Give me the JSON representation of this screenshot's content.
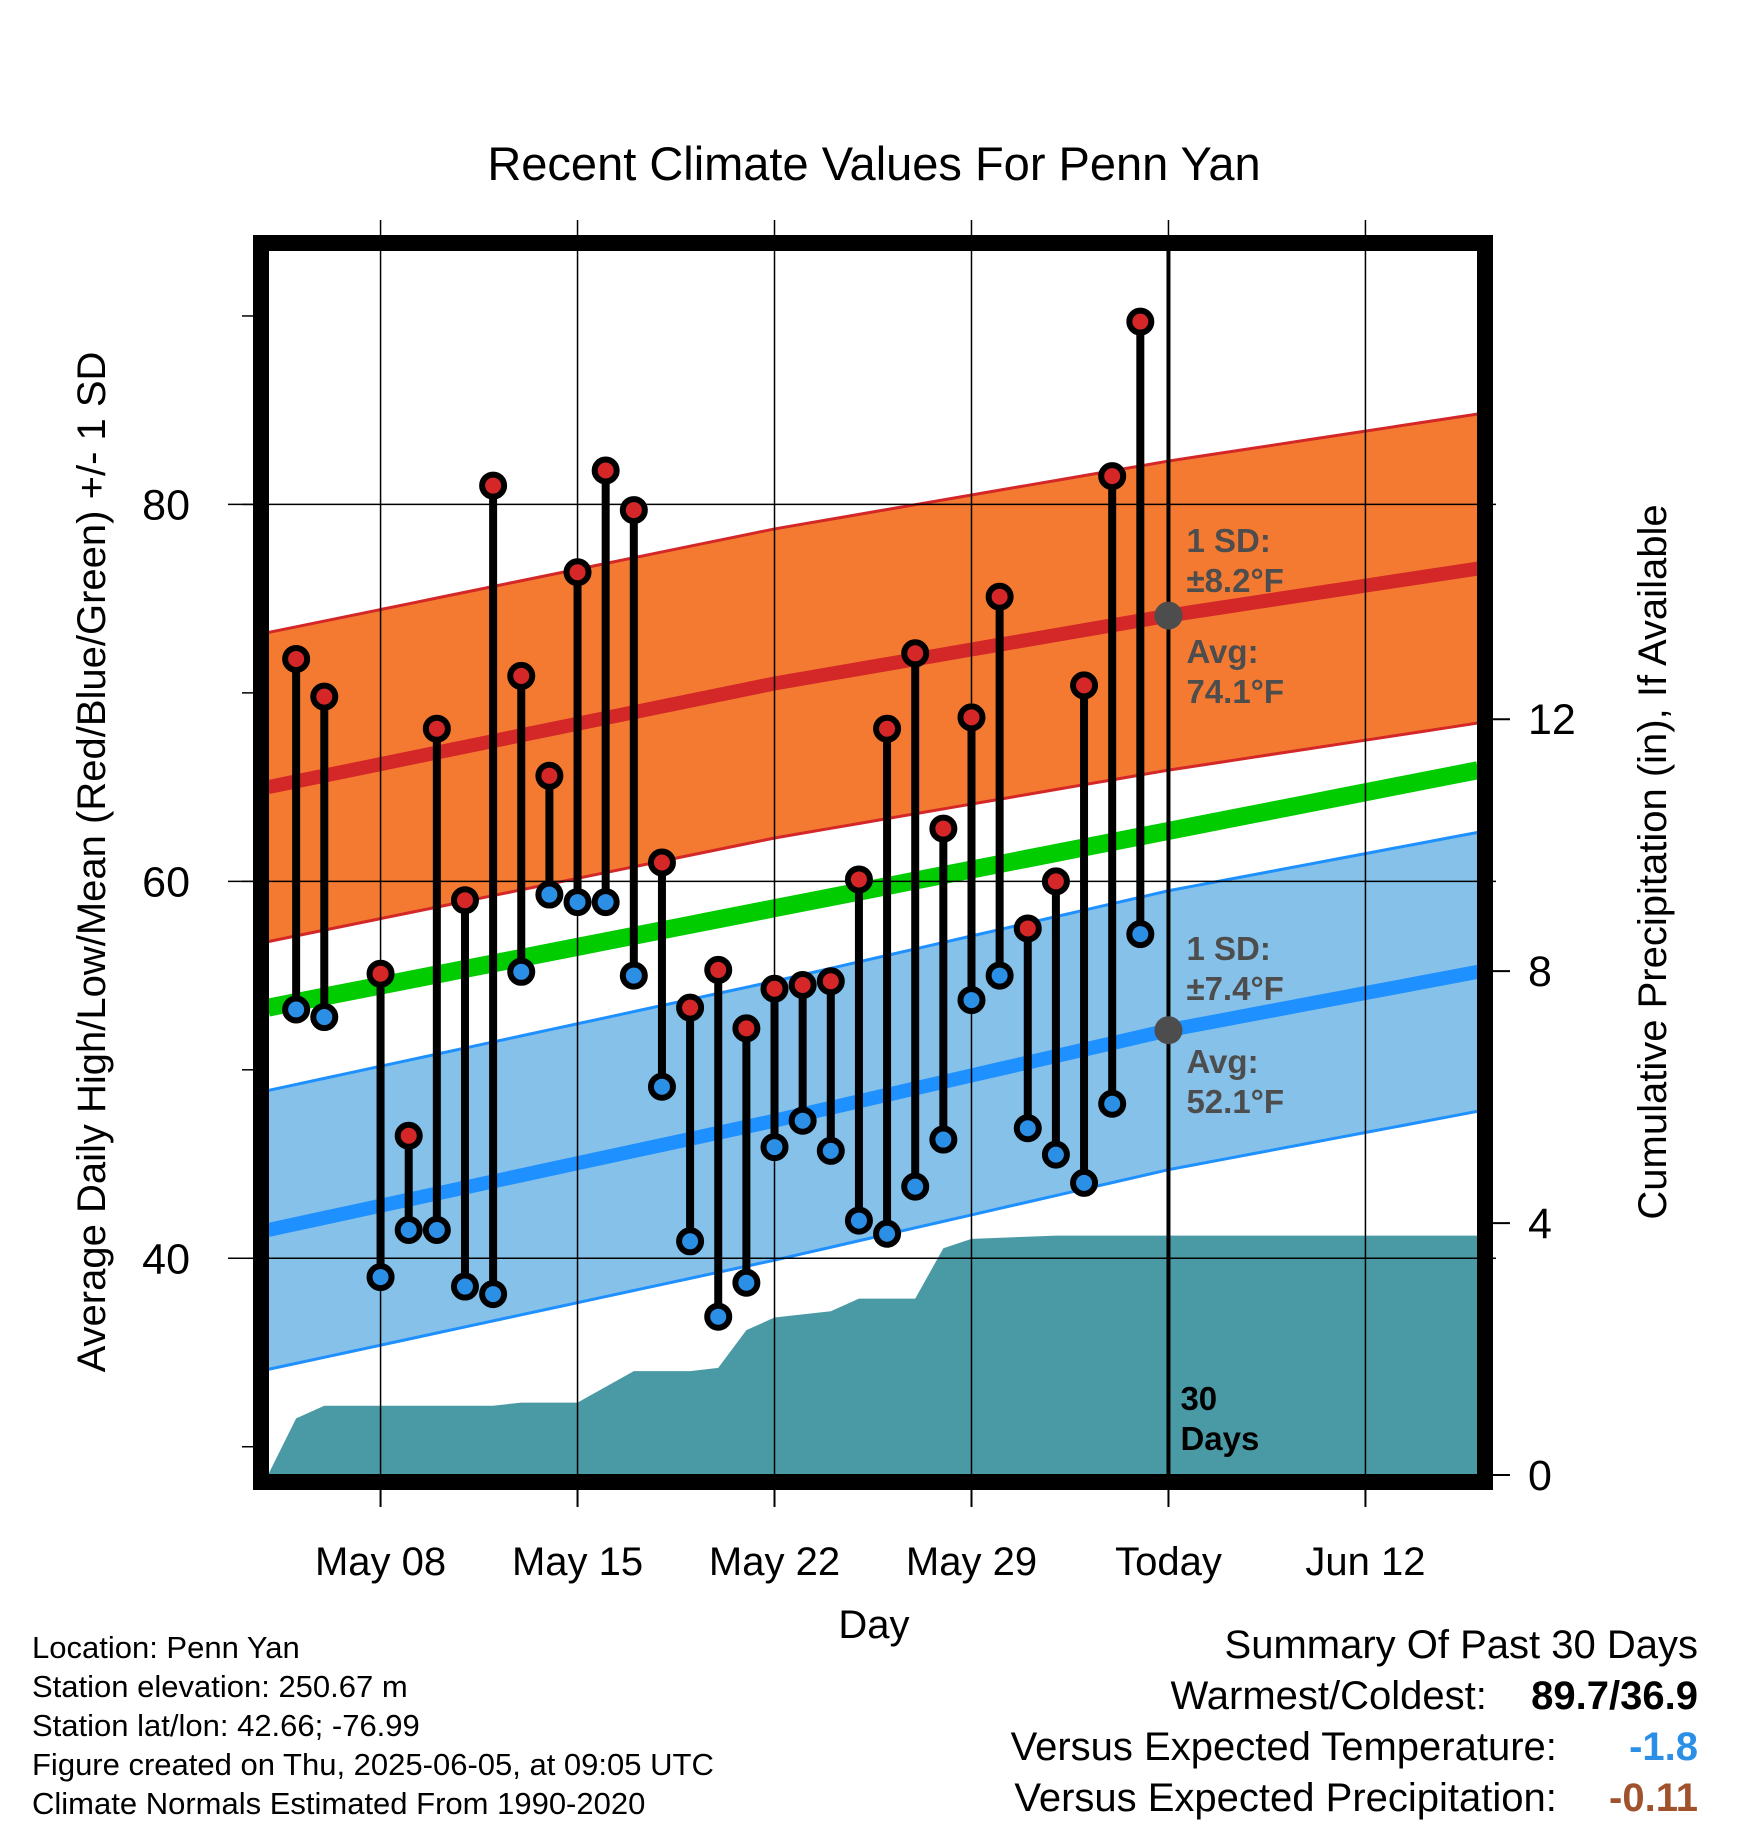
{
  "chart_data": {
    "type": "line",
    "title": "Recent Climate Values For Penn Yan",
    "xlabel": "Day",
    "ylabel": "Average Daily High/Low/Mean (Red/Blue/Green) +/- 1 SD",
    "y2label": "Cumulative Precipitation (in), If Available",
    "x_range": [
      "2025-05-04",
      "2025-06-16"
    ],
    "ylim": [
      28.5,
      93.5
    ],
    "y2lim": [
      0,
      19.45
    ],
    "yticks_major": [
      40,
      60,
      80
    ],
    "y2ticks": [
      0,
      4,
      8,
      12
    ],
    "xticks": [
      {
        "date": "2025-05-08",
        "label": "May 08"
      },
      {
        "date": "2025-05-15",
        "label": "May 15"
      },
      {
        "date": "2025-05-22",
        "label": "May 22"
      },
      {
        "date": "2025-05-29",
        "label": "May 29"
      },
      {
        "date": "2025-06-05",
        "label": "Today"
      },
      {
        "date": "2025-06-12",
        "label": "Jun 12"
      }
    ],
    "grid": true,
    "today": "2025-06-05",
    "window_label": [
      "30",
      "Days"
    ],
    "normals": {
      "high_mean": [
        [
          "2025-05-04",
          65.0
        ],
        [
          "2025-05-22",
          70.5
        ],
        [
          "2025-06-05",
          74.1
        ],
        [
          "2025-06-16",
          76.6
        ]
      ],
      "high_sd": 8.2,
      "low_mean": [
        [
          "2025-05-04",
          41.5
        ],
        [
          "2025-05-22",
          47.3
        ],
        [
          "2025-06-05",
          52.1
        ],
        [
          "2025-06-16",
          55.2
        ]
      ],
      "low_sd": 7.4,
      "mean_mean": [
        [
          "2025-05-04",
          53.3
        ],
        [
          "2025-06-16",
          65.9
        ]
      ]
    },
    "annotations": {
      "high_sd": [
        "1 SD:",
        "±8.2°F"
      ],
      "high_avg": [
        "Avg:",
        "74.1°F"
      ],
      "low_sd": [
        "1 SD:",
        "±7.4°F"
      ],
      "low_avg": [
        "Avg:",
        "52.1°F"
      ]
    },
    "series": [
      {
        "name": "High",
        "x": [
          "2025-05-05",
          "2025-05-06",
          "2025-05-08",
          "2025-05-09",
          "2025-05-10",
          "2025-05-11",
          "2025-05-12",
          "2025-05-13",
          "2025-05-14",
          "2025-05-15",
          "2025-05-16",
          "2025-05-17",
          "2025-05-18",
          "2025-05-19",
          "2025-05-20",
          "2025-05-21",
          "2025-05-22",
          "2025-05-23",
          "2025-05-24",
          "2025-05-25",
          "2025-05-26",
          "2025-05-27",
          "2025-05-28",
          "2025-05-29",
          "2025-05-30",
          "2025-05-31",
          "2025-06-01",
          "2025-06-02",
          "2025-06-03",
          "2025-06-04"
        ],
        "values": [
          71.8,
          69.8,
          55.1,
          46.5,
          68.1,
          59.0,
          81.0,
          70.9,
          65.6,
          76.4,
          81.8,
          79.7,
          61.0,
          53.3,
          55.3,
          52.2,
          54.3,
          54.5,
          54.7,
          60.1,
          68.1,
          72.1,
          62.8,
          68.7,
          75.1,
          57.5,
          60.0,
          70.4,
          81.5,
          89.7
        ]
      },
      {
        "name": "Low",
        "x": [
          "2025-05-05",
          "2025-05-06",
          "2025-05-08",
          "2025-05-09",
          "2025-05-10",
          "2025-05-11",
          "2025-05-12",
          "2025-05-13",
          "2025-05-14",
          "2025-05-15",
          "2025-05-16",
          "2025-05-17",
          "2025-05-18",
          "2025-05-19",
          "2025-05-20",
          "2025-05-21",
          "2025-05-22",
          "2025-05-23",
          "2025-05-24",
          "2025-05-25",
          "2025-05-26",
          "2025-05-27",
          "2025-05-28",
          "2025-05-29",
          "2025-05-30",
          "2025-05-31",
          "2025-06-01",
          "2025-06-02",
          "2025-06-03",
          "2025-06-04"
        ],
        "values": [
          53.2,
          52.8,
          39.0,
          41.5,
          41.5,
          38.5,
          38.1,
          55.2,
          59.3,
          58.9,
          58.9,
          55.0,
          49.1,
          40.9,
          36.9,
          38.7,
          45.9,
          47.3,
          45.7,
          42.0,
          41.3,
          43.8,
          46.3,
          53.7,
          55.0,
          46.9,
          45.5,
          44.0,
          48.2,
          57.2
        ]
      },
      {
        "name": "Precipitation",
        "x": [
          "2025-05-04",
          "2025-05-05",
          "2025-05-06",
          "2025-05-08",
          "2025-05-12",
          "2025-05-13",
          "2025-05-15",
          "2025-05-17",
          "2025-05-19",
          "2025-05-20",
          "2025-05-21",
          "2025-05-22",
          "2025-05-23",
          "2025-05-24",
          "2025-05-25",
          "2025-05-27",
          "2025-05-28",
          "2025-05-29",
          "2025-06-01",
          "2025-06-16"
        ],
        "values": [
          0.0,
          0.9,
          1.1,
          1.1,
          1.1,
          1.15,
          1.15,
          1.65,
          1.65,
          1.7,
          2.3,
          2.5,
          2.55,
          2.6,
          2.8,
          2.8,
          3.6,
          3.75,
          3.8,
          3.8
        ]
      }
    ]
  },
  "footer": {
    "location": "Location: Penn Yan",
    "elevation": "Station elevation: 250.67 m",
    "latlon": "Station lat/lon: 42.66; -76.99",
    "created": "Figure created on Thu, 2025-06-05, at 09:05 UTC",
    "normals": "Climate Normals Estimated From 1990-2020"
  },
  "summary": {
    "title": "Summary Of Past 30 Days",
    "warmest_label": "Warmest/Coldest:",
    "warmest_value": "89.7/36.9",
    "temp_label": "Versus Expected Temperature:",
    "temp_value": "-1.8",
    "temp_color": "#2b8fe6",
    "precip_label": "Versus Expected Precipitation:",
    "precip_value": "-0.11",
    "precip_color": "#a0522d"
  },
  "colors": {
    "high_band": "#f47a32",
    "high_line": "#d42727",
    "low_band": "#85c1e9",
    "low_line": "#1e90ff",
    "mean_line": "#00cc00",
    "precip_fill": "#4a9aa5",
    "high_marker": "#d62728",
    "low_marker": "#2b8fe6",
    "annotation": "#4d4d4d"
  }
}
